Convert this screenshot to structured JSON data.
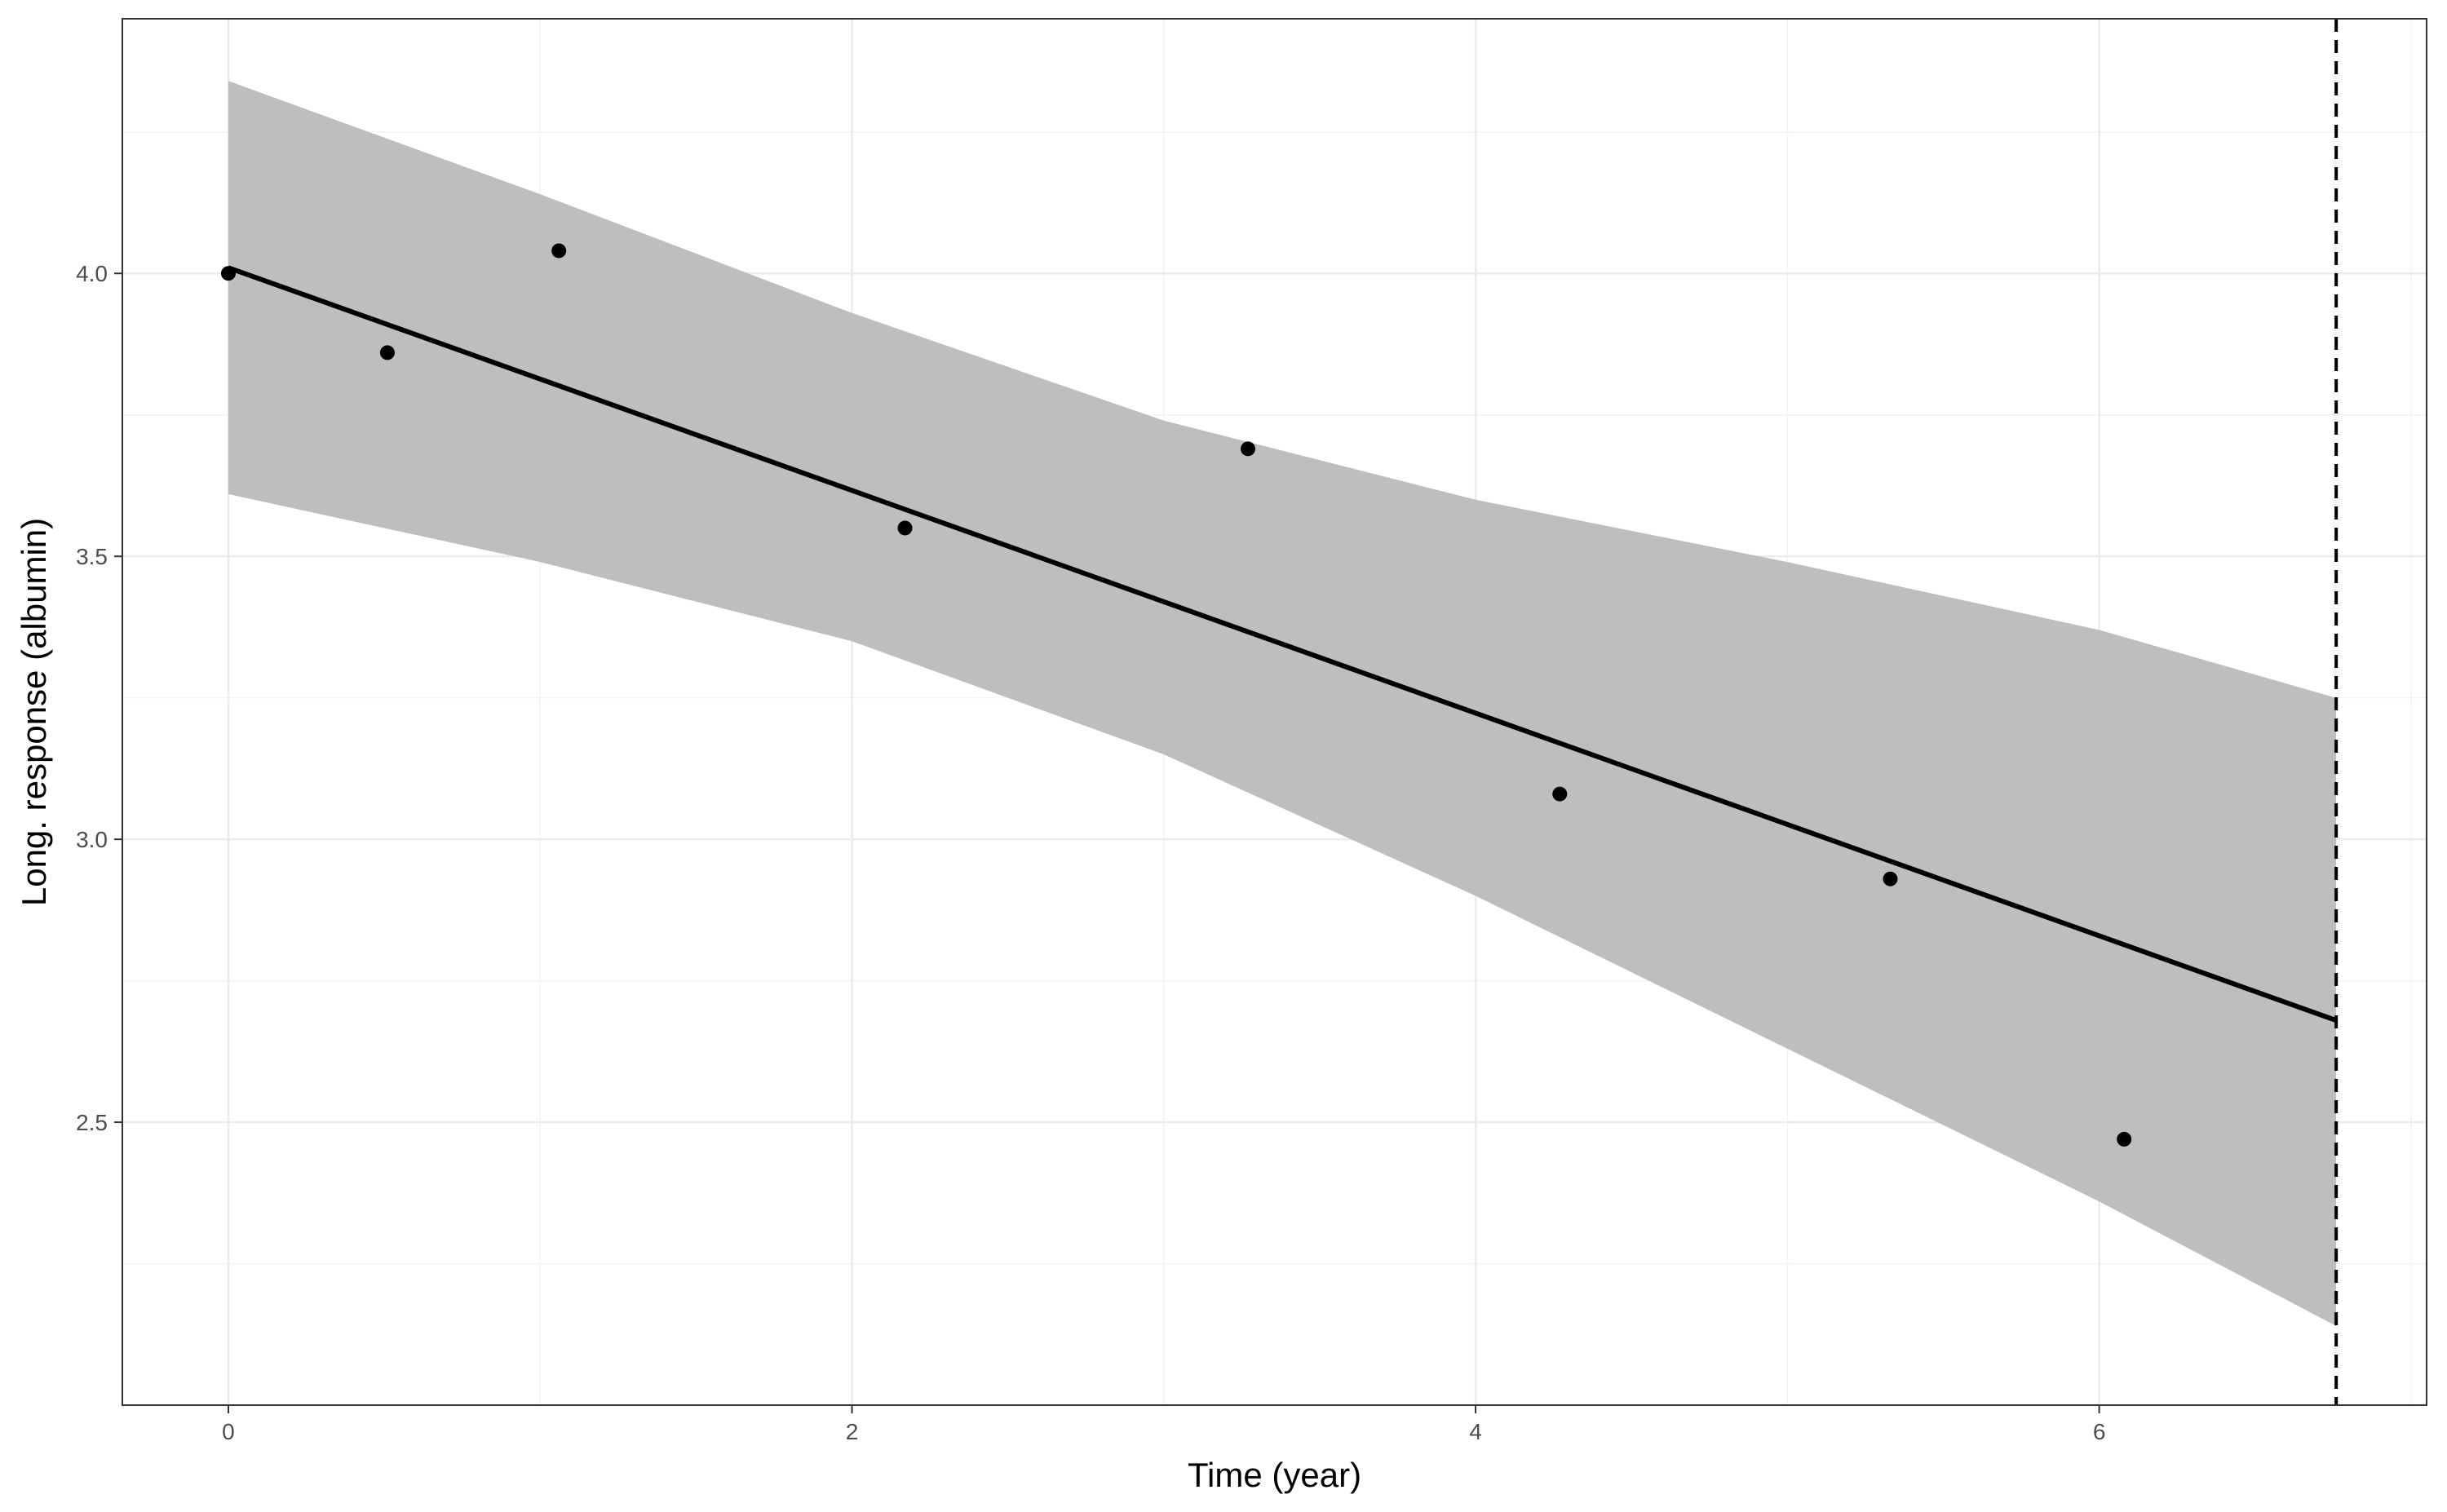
{
  "chart_data": {
    "type": "line",
    "title": "",
    "xlabel": "Time (year)",
    "ylabel": "Long. response (albumin)",
    "xlim": [
      -0.34,
      7.05
    ],
    "ylim": [
      2.0,
      4.45
    ],
    "x_ticks": [
      0,
      2,
      4,
      6
    ],
    "x_tick_labels": [
      "0",
      "2",
      "4",
      "6"
    ],
    "y_ticks": [
      2.5,
      3.0,
      3.5,
      4.0
    ],
    "y_tick_labels": [
      "2.5",
      "3.0",
      "3.5",
      "4.0"
    ],
    "grid": true,
    "legend": "none",
    "observations": {
      "x": [
        0.0,
        0.51,
        1.06,
        2.17,
        3.27,
        4.27,
        5.33,
        6.08
      ],
      "y": [
        4.0,
        3.86,
        4.04,
        3.55,
        3.69,
        3.08,
        2.93,
        2.47
      ]
    },
    "fitted_line": {
      "x": [
        0.0,
        6.76
      ],
      "y": [
        4.01,
        2.68
      ]
    },
    "confidence_band": {
      "x": [
        0.0,
        1.0,
        2.0,
        3.0,
        4.0,
        5.0,
        6.0,
        6.76
      ],
      "lower": [
        3.61,
        3.49,
        3.35,
        3.15,
        2.9,
        2.63,
        2.36,
        2.14
      ],
      "upper": [
        4.34,
        4.14,
        3.93,
        3.74,
        3.6,
        3.49,
        3.37,
        3.25
      ]
    },
    "event_time": 6.76,
    "colors": {
      "band": "#bebebe",
      "line": "#000000",
      "points": "#000000",
      "grid_major": "#ebebeb",
      "grid_minor": "#f3f3f3",
      "panel_border": "#333333"
    }
  }
}
